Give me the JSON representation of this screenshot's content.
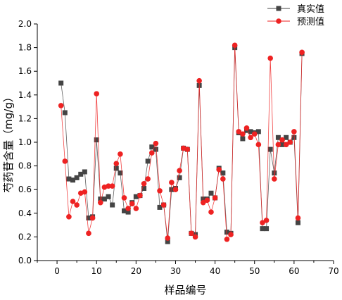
{
  "chart_data": {
    "type": "line",
    "xlabel": "样品编号",
    "ylabel": "芍药苷含量（mg/g）",
    "xlim": [
      -5,
      70
    ],
    "ylim": [
      0.0,
      2.0
    ],
    "x_ticks": [
      0,
      10,
      20,
      30,
      40,
      50,
      60,
      70
    ],
    "y_ticks": [
      0.0,
      0.2,
      0.4,
      0.6,
      0.8,
      1.0,
      1.2,
      1.4,
      1.6,
      1.8,
      2.0
    ],
    "x_tick_labels": [
      "0",
      "10",
      "20",
      "30",
      "40",
      "50",
      "60",
      "70"
    ],
    "y_tick_labels": [
      "0.0",
      "0.2",
      "0.4",
      "0.6",
      "0.8",
      "1.0",
      "1.2",
      "1.4",
      "1.6",
      "1.8",
      "2.0"
    ],
    "legend_position": "top-right",
    "x": [
      1,
      2,
      3,
      4,
      5,
      6,
      7,
      8,
      9,
      10,
      11,
      12,
      13,
      14,
      15,
      16,
      17,
      18,
      19,
      20,
      21,
      22,
      23,
      24,
      25,
      26,
      27,
      28,
      29,
      30,
      31,
      32,
      33,
      34,
      35,
      36,
      37,
      38,
      39,
      40,
      41,
      42,
      43,
      44,
      45,
      46,
      47,
      48,
      49,
      50,
      51,
      52,
      53,
      54,
      55,
      56,
      57,
      58,
      59,
      60,
      61,
      62
    ],
    "series": [
      {
        "name": "真实值",
        "marker": "square",
        "color": "#444444",
        "values": [
          1.5,
          1.25,
          0.69,
          0.68,
          0.7,
          0.73,
          0.75,
          0.36,
          0.37,
          1.02,
          0.52,
          0.52,
          0.54,
          0.47,
          0.78,
          0.74,
          0.42,
          0.41,
          0.49,
          0.54,
          0.55,
          0.61,
          0.84,
          0.96,
          0.94,
          0.45,
          0.47,
          0.16,
          0.6,
          0.61,
          0.7,
          0.95,
          0.94,
          0.23,
          0.22,
          1.48,
          0.52,
          0.52,
          0.57,
          0.53,
          0.78,
          0.74,
          0.24,
          0.23,
          1.8,
          1.08,
          1.03,
          1.1,
          1.09,
          1.08,
          1.09,
          0.27,
          0.27,
          0.94,
          0.74,
          1.04,
          0.98,
          1.04,
          1.0,
          1.04,
          0.32,
          1.75
        ]
      },
      {
        "name": "预测值",
        "marker": "circle",
        "color": "#ee2222",
        "values": [
          1.31,
          0.84,
          0.37,
          0.5,
          0.47,
          0.57,
          0.58,
          0.23,
          0.36,
          1.41,
          0.49,
          0.62,
          0.63,
          0.63,
          0.82,
          0.9,
          0.53,
          0.44,
          0.48,
          0.44,
          0.55,
          0.65,
          0.69,
          0.91,
          0.99,
          0.59,
          0.47,
          0.19,
          0.66,
          0.6,
          0.76,
          0.95,
          0.94,
          0.23,
          0.2,
          1.52,
          0.49,
          0.51,
          0.41,
          0.53,
          0.77,
          0.69,
          0.18,
          0.22,
          1.82,
          1.09,
          1.07,
          1.12,
          1.04,
          1.07,
          0.98,
          0.32,
          0.34,
          1.71,
          0.69,
          0.98,
          1.02,
          0.98,
          1.0,
          1.09,
          0.36,
          1.76
        ]
      }
    ]
  }
}
